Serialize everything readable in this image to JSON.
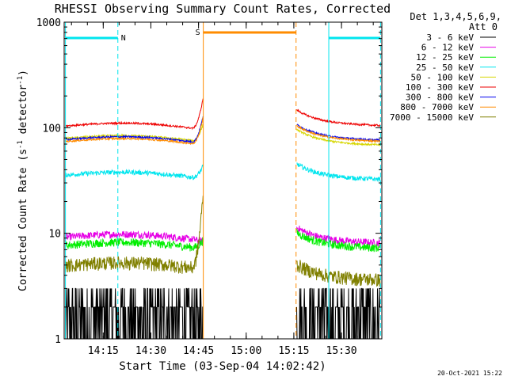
{
  "chart_data": {
    "type": "line",
    "title": "RHESSI Observing Summary Count Rates, Corrected",
    "xlabel": "Start Time (03-Sep-04 14:02:42)",
    "ylabel_main": "Corrected Count Rate (s",
    "ylabel_sup": "-1",
    "ylabel_mid": " detector",
    "ylabel_end": ")",
    "yscale": "log",
    "ylim": [
      1,
      1000
    ],
    "xlim_minutes": [
      0,
      100
    ],
    "x_tick_labels": [
      {
        "label": "14:15",
        "minute": 12.3
      },
      {
        "label": "14:30",
        "minute": 27.3
      },
      {
        "label": "14:45",
        "minute": 42.3
      },
      {
        "label": "15:00",
        "minute": 57.3
      },
      {
        "label": "15:15",
        "minute": 72.3
      },
      {
        "label": "15:30",
        "minute": 87.3
      }
    ],
    "y_tick_labels": [
      "1",
      "10",
      "100",
      "1000"
    ],
    "detectors_header": "Det 1,3,4,5,6,9,",
    "attenuator_label": "Att 0",
    "timestamp": "20-Oct-2021 15:22",
    "series": [
      {
        "name": "3 - 6 keV",
        "color": "#000000",
        "level_pre": 1.8,
        "level_post": 1.8,
        "peak": 2.0,
        "noise": 0.9
      },
      {
        "name": "6 - 12 keV",
        "color": "#e600e6",
        "level_pre": 9.3,
        "level_post": 8.5,
        "peak": 9.0,
        "noise": 0.08
      },
      {
        "name": "12 - 25 keV",
        "color": "#00ee00",
        "level_pre": 7.8,
        "level_post": 7.6,
        "peak": 9.5,
        "noise": 0.09
      },
      {
        "name": "25 - 50 keV",
        "color": "#00e5ee",
        "level_pre": 36,
        "level_post": 34,
        "peak": 48,
        "noise": 0.05
      },
      {
        "name": "50 - 100 keV",
        "color": "#d6d600",
        "level_pre": 80,
        "level_post": 72,
        "peak": 120,
        "noise": 0.02
      },
      {
        "name": "100 - 300 keV",
        "color": "#ee0000",
        "level_pre": 105,
        "level_post": 110,
        "peak": 215,
        "noise": 0.02
      },
      {
        "name": "300 - 800 keV",
        "color": "#0000ee",
        "level_pre": 78,
        "level_post": 80,
        "peak": 145,
        "noise": 0.02
      },
      {
        "name": "800 - 7000 keV",
        "color": "#ff8c00",
        "level_pre": 75,
        "level_post": 78,
        "peak": 140,
        "noise": 0.02
      },
      {
        "name": "7000 - 15000 keV",
        "color": "#808000",
        "level_pre": 5.0,
        "level_post": 3.8,
        "peak": 28,
        "noise": 0.15
      }
    ],
    "markers": [
      {
        "label": "N",
        "color": "#00e5ee",
        "type": "night",
        "start": 0.4,
        "end": 16.9
      },
      {
        "label": "",
        "color": "#00e5ee",
        "type": "night",
        "start": 83.3,
        "end": 99.6
      },
      {
        "label": "S",
        "color": "#ff8c00",
        "type": "saa",
        "start": 43.8,
        "end": 73.0
      }
    ],
    "data_gap_minutes": [
      43.8,
      73.0
    ]
  }
}
